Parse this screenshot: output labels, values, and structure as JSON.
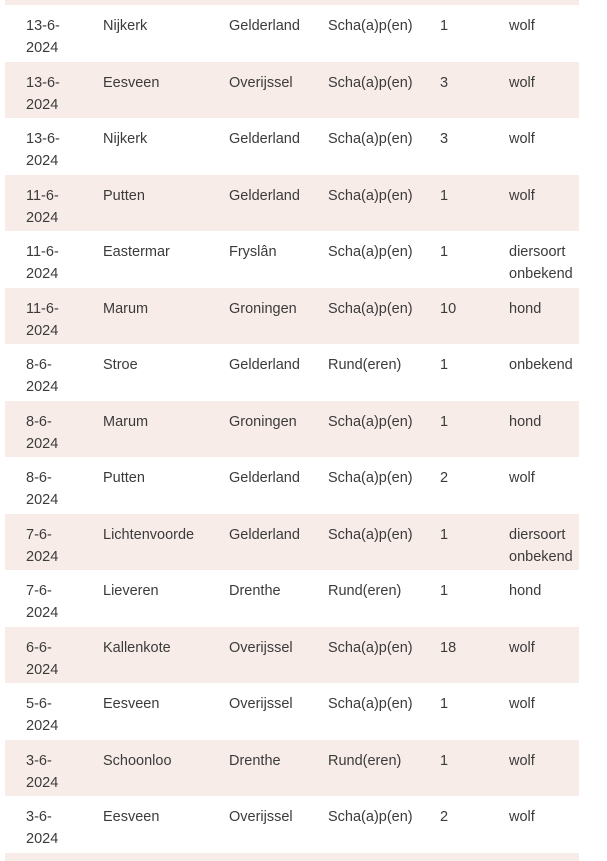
{
  "colors": {
    "row_alt": "#f8ece8",
    "text": "#3b3b3b",
    "background": "#ffffff"
  },
  "table": {
    "rows": [
      {
        "date": "13-6-2024",
        "place": "Nijkerk",
        "province": "Gelderland",
        "animal": "Scha(a)p(en)",
        "count": "1",
        "species": "wolf"
      },
      {
        "date": "13-6-2024",
        "place": "Eesveen",
        "province": "Overijssel",
        "animal": "Scha(a)p(en)",
        "count": "3",
        "species": "wolf"
      },
      {
        "date": "13-6-2024",
        "place": "Nijkerk",
        "province": "Gelderland",
        "animal": "Scha(a)p(en)",
        "count": "3",
        "species": "wolf"
      },
      {
        "date": "11-6-2024",
        "place": "Putten",
        "province": "Gelderland",
        "animal": "Scha(a)p(en)",
        "count": "1",
        "species": "wolf"
      },
      {
        "date": "11-6-2024",
        "place": "Eastermar",
        "province": "Fryslân",
        "animal": "Scha(a)p(en)",
        "count": "1",
        "species": "diersoort onbekend"
      },
      {
        "date": "11-6-2024",
        "place": "Marum",
        "province": "Groningen",
        "animal": "Scha(a)p(en)",
        "count": "10",
        "species": "hond"
      },
      {
        "date": "8-6-2024",
        "place": "Stroe",
        "province": "Gelderland",
        "animal": "Rund(eren)",
        "count": "1",
        "species": "onbekend"
      },
      {
        "date": "8-6-2024",
        "place": "Marum",
        "province": "Groningen",
        "animal": "Scha(a)p(en)",
        "count": "1",
        "species": "hond"
      },
      {
        "date": "8-6-2024",
        "place": "Putten",
        "province": "Gelderland",
        "animal": "Scha(a)p(en)",
        "count": "2",
        "species": "wolf"
      },
      {
        "date": "7-6-2024",
        "place": "Lichtenvoorde",
        "province": "Gelderland",
        "animal": "Scha(a)p(en)",
        "count": "1",
        "species": "diersoort onbekend"
      },
      {
        "date": "7-6-2024",
        "place": "Lieveren",
        "province": "Drenthe",
        "animal": "Rund(eren)",
        "count": "1",
        "species": "hond"
      },
      {
        "date": "6-6-2024",
        "place": "Kallenkote",
        "province": "Overijssel",
        "animal": "Scha(a)p(en)",
        "count": "18",
        "species": "wolf"
      },
      {
        "date": "5-6-2024",
        "place": "Eesveen",
        "province": "Overijssel",
        "animal": "Scha(a)p(en)",
        "count": "1",
        "species": "wolf"
      },
      {
        "date": "3-6-2024",
        "place": "Schoonloo",
        "province": "Drenthe",
        "animal": "Rund(eren)",
        "count": "1",
        "species": "wolf"
      },
      {
        "date": "3-6-2024",
        "place": "Eesveen",
        "province": "Overijssel",
        "animal": "Scha(a)p(en)",
        "count": "2",
        "species": "wolf"
      }
    ]
  }
}
